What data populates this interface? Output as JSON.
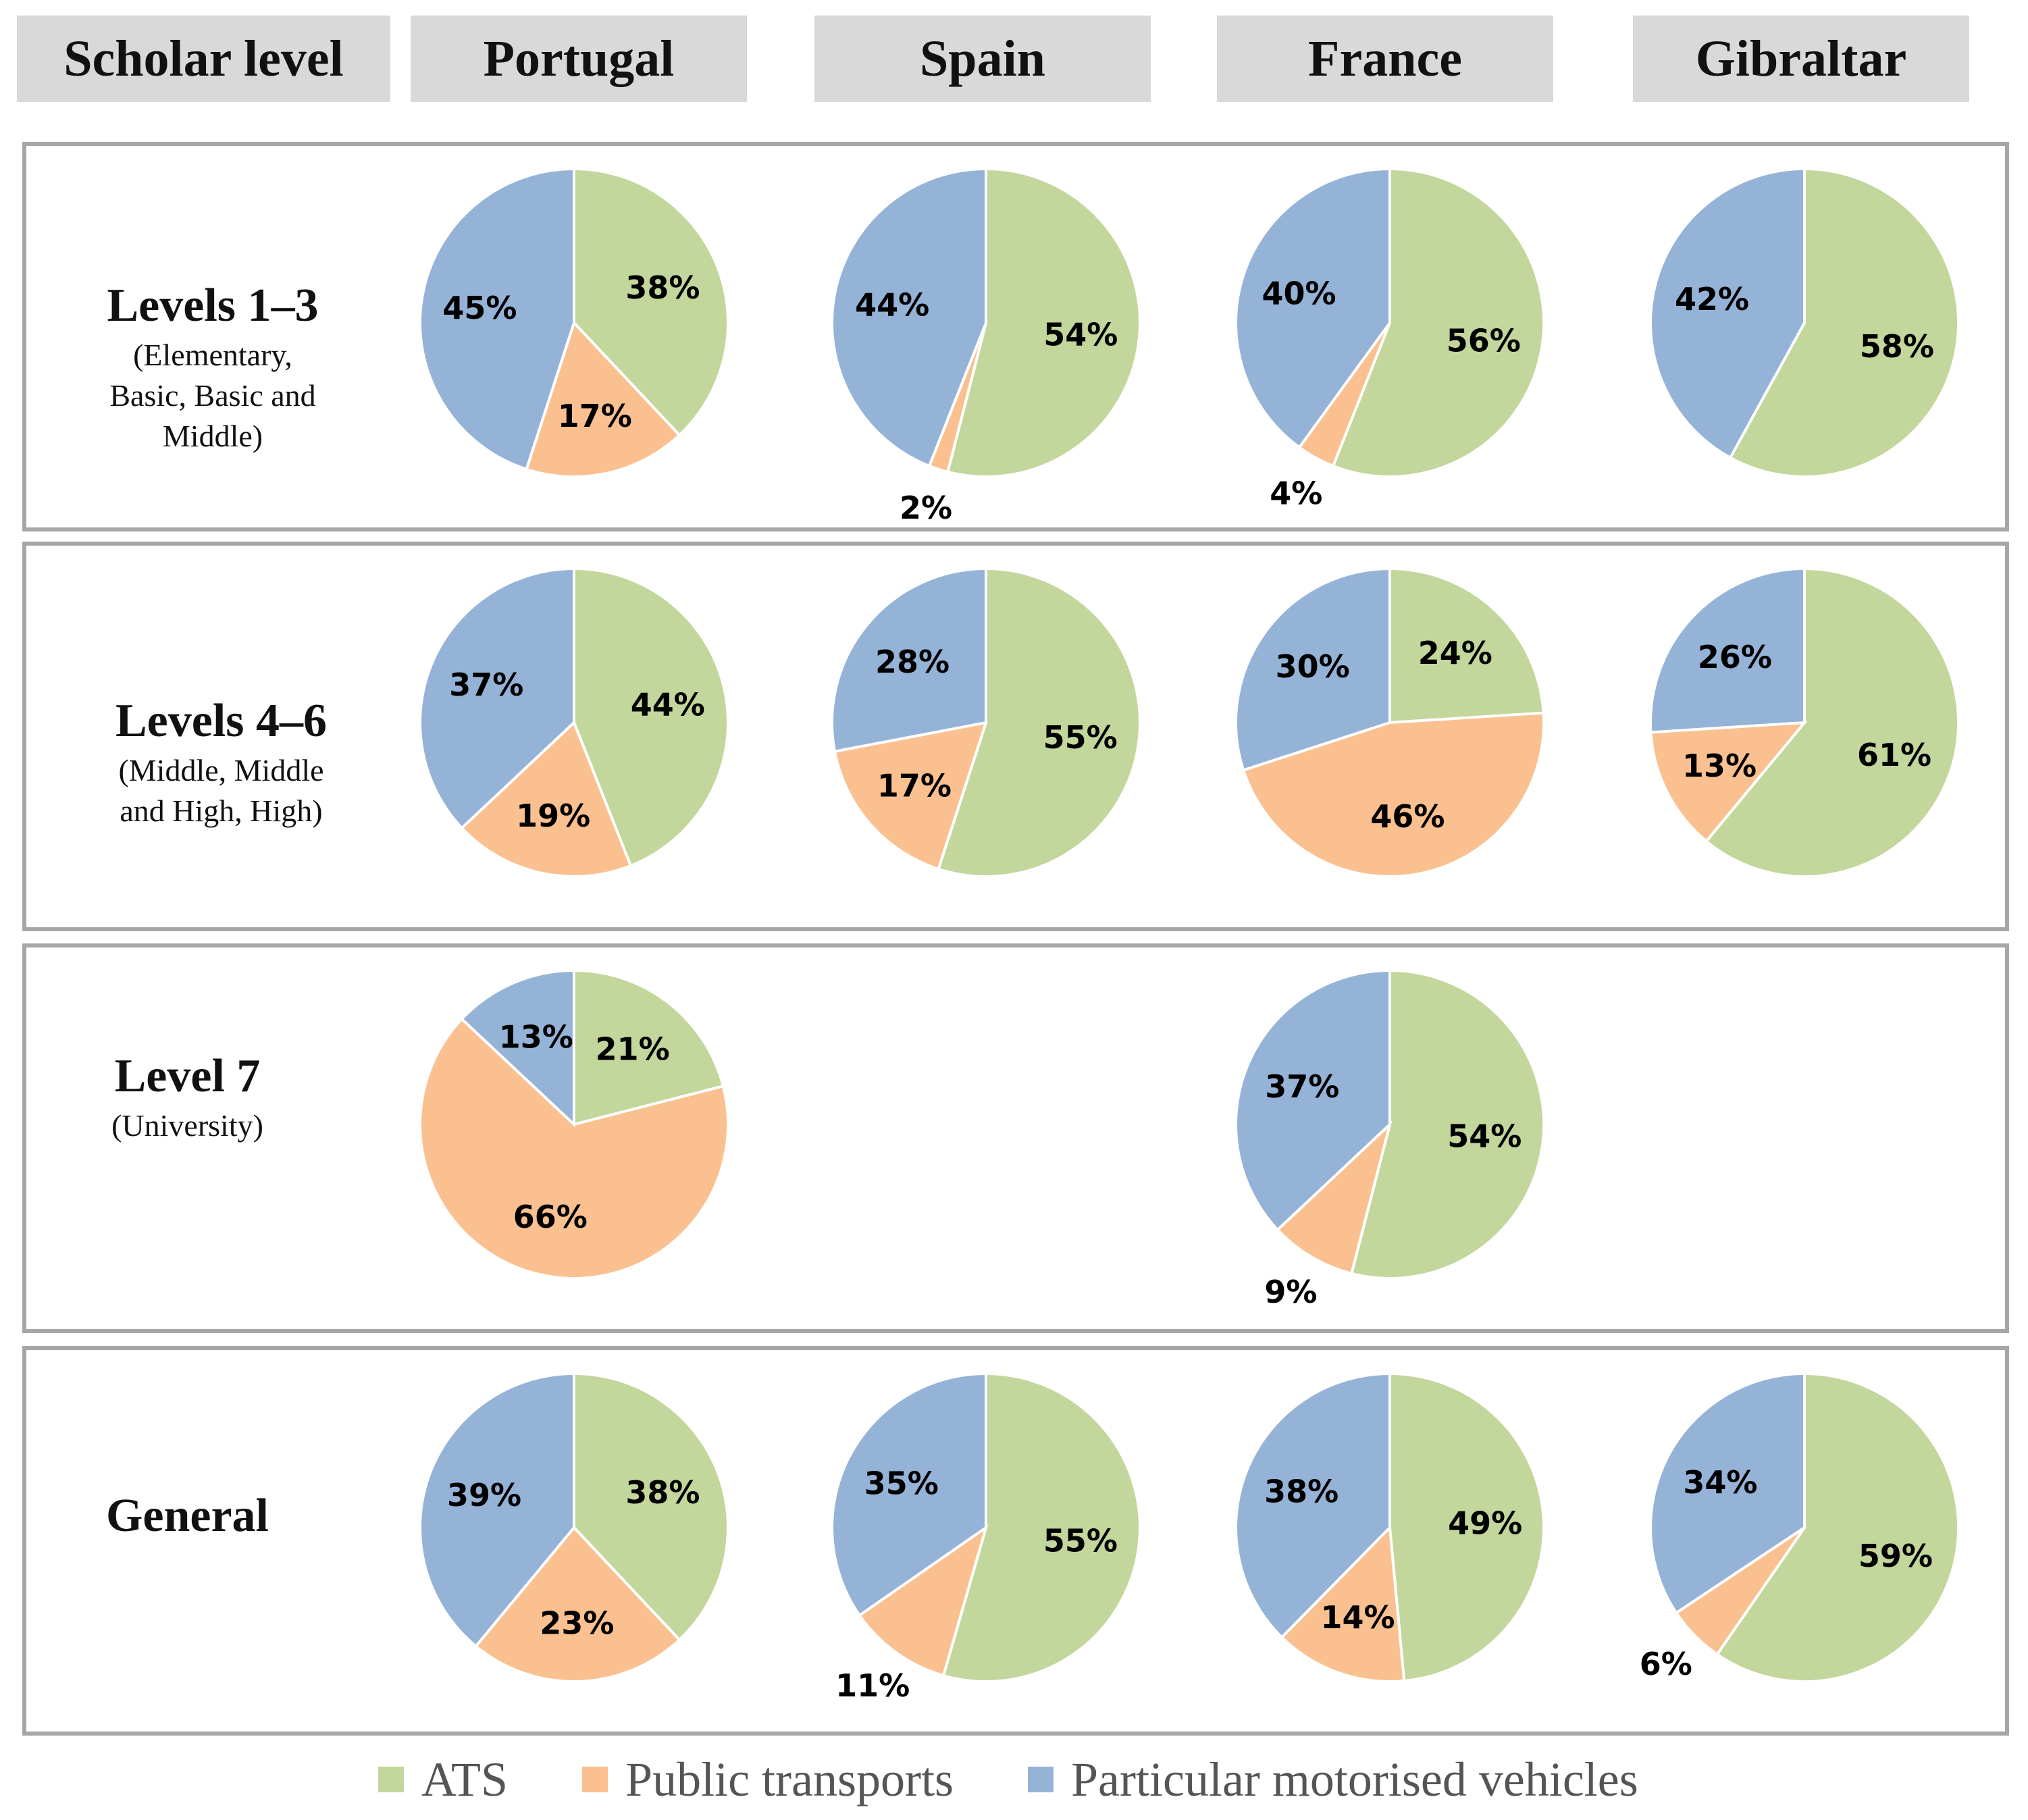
{
  "columns": {
    "scholar_level": "Scholar level",
    "portugal": "Portugal",
    "spain": "Spain",
    "france": "France",
    "gibraltar": "Gibraltar"
  },
  "rows": {
    "r1": {
      "main": "Levels 1–3",
      "sub1": "(Elementary,",
      "sub2": "Basic, Basic and",
      "sub3": "Middle)"
    },
    "r2": {
      "main": "Levels 4–6",
      "sub1": "(Middle, Middle",
      "sub2": "and High, High)"
    },
    "r3": {
      "main": "Level 7",
      "sub1": "(University)"
    },
    "r4": {
      "main": "General"
    }
  },
  "legend": {
    "ats": "ATS",
    "public": "Public transports",
    "private": "Particular motorised vehicles"
  },
  "colors": {
    "ats": "#c3d69b",
    "public": "#fac090",
    "private": "#95b3d7"
  },
  "chart_data": [
    {
      "type": "pie",
      "row": "Levels 1–3",
      "country": "Portugal",
      "slices": {
        "ATS": 38,
        "Public transports": 17,
        "Particular motorised vehicles": 45
      },
      "labels": {
        "ATS": "38%",
        "Public transports": "17%",
        "Particular motorised vehicles": "45%"
      }
    },
    {
      "type": "pie",
      "row": "Levels 1–3",
      "country": "Spain",
      "slices": {
        "ATS": 54,
        "Public transports": 2,
        "Particular motorised vehicles": 44
      },
      "labels": {
        "ATS": "54%",
        "Public transports": "2%",
        "Particular motorised vehicles": "44%"
      }
    },
    {
      "type": "pie",
      "row": "Levels 1–3",
      "country": "France",
      "slices": {
        "ATS": 56,
        "Public transports": 4,
        "Particular motorised vehicles": 40
      },
      "labels": {
        "ATS": "56%",
        "Public transports": "4%",
        "Particular motorised vehicles": "40%"
      }
    },
    {
      "type": "pie",
      "row": "Levels 1–3",
      "country": "Gibraltar",
      "slices": {
        "ATS": 58,
        "Public transports": 0,
        "Particular motorised vehicles": 42
      },
      "labels": {
        "ATS": "58%",
        "Particular motorised vehicles": "42%"
      }
    },
    {
      "type": "pie",
      "row": "Levels 4–6",
      "country": "Portugal",
      "slices": {
        "ATS": 44,
        "Public transports": 19,
        "Particular motorised vehicles": 37
      },
      "labels": {
        "ATS": "44%",
        "Public transports": "19%",
        "Particular motorised vehicles": "37%"
      }
    },
    {
      "type": "pie",
      "row": "Levels 4–6",
      "country": "Spain",
      "slices": {
        "ATS": 55,
        "Public transports": 17,
        "Particular motorised vehicles": 28
      },
      "labels": {
        "ATS": "55%",
        "Public transports": "17%",
        "Particular motorised vehicles": "28%"
      }
    },
    {
      "type": "pie",
      "row": "Levels 4–6",
      "country": "France",
      "slices": {
        "ATS": 24,
        "Public transports": 46,
        "Particular motorised vehicles": 30
      },
      "labels": {
        "ATS": "24%",
        "Public transports": "46%",
        "Particular motorised vehicles": "30%"
      }
    },
    {
      "type": "pie",
      "row": "Levels 4–6",
      "country": "Gibraltar",
      "slices": {
        "ATS": 61,
        "Public transports": 13,
        "Particular motorised vehicles": 26
      },
      "labels": {
        "ATS": "61%",
        "Public transports": "13%",
        "Particular motorised vehicles": "26%"
      }
    },
    {
      "type": "pie",
      "row": "Level 7",
      "country": "Portugal",
      "slices": {
        "ATS": 21,
        "Public transports": 66,
        "Particular motorised vehicles": 13
      },
      "labels": {
        "ATS": "21%",
        "Public transports": "66%",
        "Particular motorised vehicles": "13%"
      }
    },
    {
      "type": "pie",
      "row": "Level 7",
      "country": "France",
      "slices": {
        "ATS": 54,
        "Public transports": 9,
        "Particular motorised vehicles": 37
      },
      "labels": {
        "ATS": "54%",
        "Public transports": "9%",
        "Particular motorised vehicles": "37%"
      }
    },
    {
      "type": "pie",
      "row": "General",
      "country": "Portugal",
      "slices": {
        "ATS": 38,
        "Public transports": 23,
        "Particular motorised vehicles": 39
      },
      "labels": {
        "ATS": "38%",
        "Public transports": "23%",
        "Particular motorised vehicles": "39%"
      }
    },
    {
      "type": "pie",
      "row": "General",
      "country": "Spain",
      "slices": {
        "ATS": 55,
        "Public transports": 11,
        "Particular motorised vehicles": 35
      },
      "labels": {
        "ATS": "55%",
        "Public transports": "11%",
        "Particular motorised vehicles": "35%"
      }
    },
    {
      "type": "pie",
      "row": "General",
      "country": "France",
      "slices": {
        "ATS": 49,
        "Public transports": 14,
        "Particular motorised vehicles": 38
      },
      "labels": {
        "ATS": "49%",
        "Public transports": "14%",
        "Particular motorised vehicles": "38%"
      }
    },
    {
      "type": "pie",
      "row": "General",
      "country": "Gibraltar",
      "slices": {
        "ATS": 59,
        "Public transports": 6,
        "Particular motorised vehicles": 34
      },
      "labels": {
        "ATS": "59%",
        "Public transports": "6%",
        "Particular motorised vehicles": "34%"
      }
    }
  ]
}
